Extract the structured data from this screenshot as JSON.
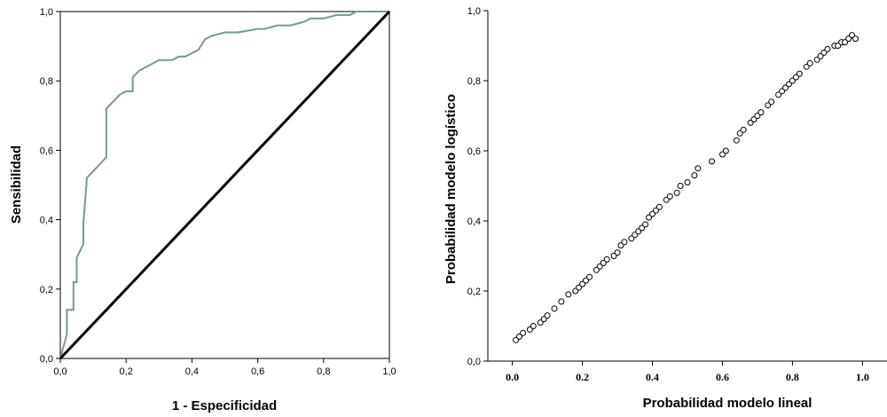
{
  "chart_data": [
    {
      "type": "line",
      "title": "",
      "xlabel": "1 - Especificidad",
      "ylabel": "Sensibilidad",
      "xlim": [
        0,
        1
      ],
      "ylim": [
        0,
        1
      ],
      "xticks": [
        "0,0",
        "0,2",
        "0,4",
        "0,6",
        "0,8",
        "1,0"
      ],
      "yticks": [
        "0,0",
        "0,2",
        "0,4",
        "0,6",
        "0,8",
        "1,0"
      ],
      "series": [
        {
          "color": "#6f9e87",
          "x": [
            0,
            0.02,
            0.02,
            0.04,
            0.04,
            0.05,
            0.05,
            0.07,
            0.07,
            0.08,
            0.08,
            0.1,
            0.12,
            0.14,
            0.14,
            0.16,
            0.18,
            0.2,
            0.22,
            0.22,
            0.24,
            0.26,
            0.28,
            0.3,
            0.32,
            0.34,
            0.36,
            0.38,
            0.4,
            0.42,
            0.44,
            0.46,
            0.5,
            0.54,
            0.6,
            0.62,
            0.66,
            0.7,
            0.74,
            0.76,
            0.8,
            0.84,
            0.88,
            0.9,
            0.92,
            0.94,
            1.0
          ],
          "y": [
            0,
            0.07,
            0.14,
            0.14,
            0.22,
            0.22,
            0.29,
            0.33,
            0.39,
            0.51,
            0.52,
            0.54,
            0.56,
            0.58,
            0.72,
            0.74,
            0.76,
            0.77,
            0.77,
            0.81,
            0.83,
            0.84,
            0.85,
            0.86,
            0.86,
            0.86,
            0.87,
            0.87,
            0.88,
            0.89,
            0.92,
            0.93,
            0.94,
            0.94,
            0.95,
            0.95,
            0.96,
            0.96,
            0.97,
            0.98,
            0.98,
            0.99,
            0.99,
            1.0,
            1.0,
            1.0,
            1.0
          ]
        },
        {
          "color": "#000000",
          "x": [
            0,
            1
          ],
          "y": [
            0,
            1
          ]
        }
      ]
    },
    {
      "type": "scatter",
      "title": "",
      "xlabel": "Probabilidad modelo lineal",
      "ylabel": "Probabilidad modelo logístico",
      "xlim": [
        -0.07,
        1.07
      ],
      "ylim": [
        0,
        1
      ],
      "xticks": [
        "0.0",
        "0.2",
        "0.4",
        "0.6",
        "0.8",
        "1.0"
      ],
      "yticks": [
        "0,0",
        "0,2",
        "0,4",
        "0,6",
        "0,8",
        "1,0"
      ],
      "series": [
        {
          "marker": "open-circle",
          "x": [
            0.01,
            0.02,
            0.03,
            0.05,
            0.06,
            0.08,
            0.09,
            0.1,
            0.12,
            0.14,
            0.16,
            0.18,
            0.19,
            0.2,
            0.21,
            0.22,
            0.24,
            0.25,
            0.26,
            0.27,
            0.29,
            0.3,
            0.31,
            0.32,
            0.34,
            0.35,
            0.36,
            0.37,
            0.38,
            0.39,
            0.4,
            0.41,
            0.42,
            0.44,
            0.45,
            0.47,
            0.48,
            0.5,
            0.52,
            0.53,
            0.57,
            0.6,
            0.61,
            0.64,
            0.65,
            0.66,
            0.68,
            0.69,
            0.7,
            0.71,
            0.73,
            0.74,
            0.76,
            0.77,
            0.78,
            0.79,
            0.8,
            0.81,
            0.82,
            0.84,
            0.85,
            0.87,
            0.88,
            0.89,
            0.9,
            0.92,
            0.93,
            0.94,
            0.95,
            0.96,
            0.97,
            0.98
          ],
          "y": [
            0.06,
            0.07,
            0.08,
            0.09,
            0.1,
            0.11,
            0.12,
            0.13,
            0.15,
            0.17,
            0.19,
            0.2,
            0.21,
            0.22,
            0.23,
            0.24,
            0.26,
            0.27,
            0.28,
            0.29,
            0.3,
            0.31,
            0.33,
            0.34,
            0.35,
            0.36,
            0.37,
            0.38,
            0.39,
            0.41,
            0.42,
            0.43,
            0.44,
            0.46,
            0.47,
            0.48,
            0.5,
            0.51,
            0.53,
            0.55,
            0.57,
            0.59,
            0.6,
            0.63,
            0.65,
            0.66,
            0.68,
            0.69,
            0.7,
            0.71,
            0.73,
            0.74,
            0.76,
            0.77,
            0.78,
            0.79,
            0.8,
            0.81,
            0.82,
            0.84,
            0.85,
            0.86,
            0.87,
            0.88,
            0.89,
            0.9,
            0.9,
            0.91,
            0.91,
            0.92,
            0.93,
            0.92
          ]
        }
      ]
    }
  ]
}
